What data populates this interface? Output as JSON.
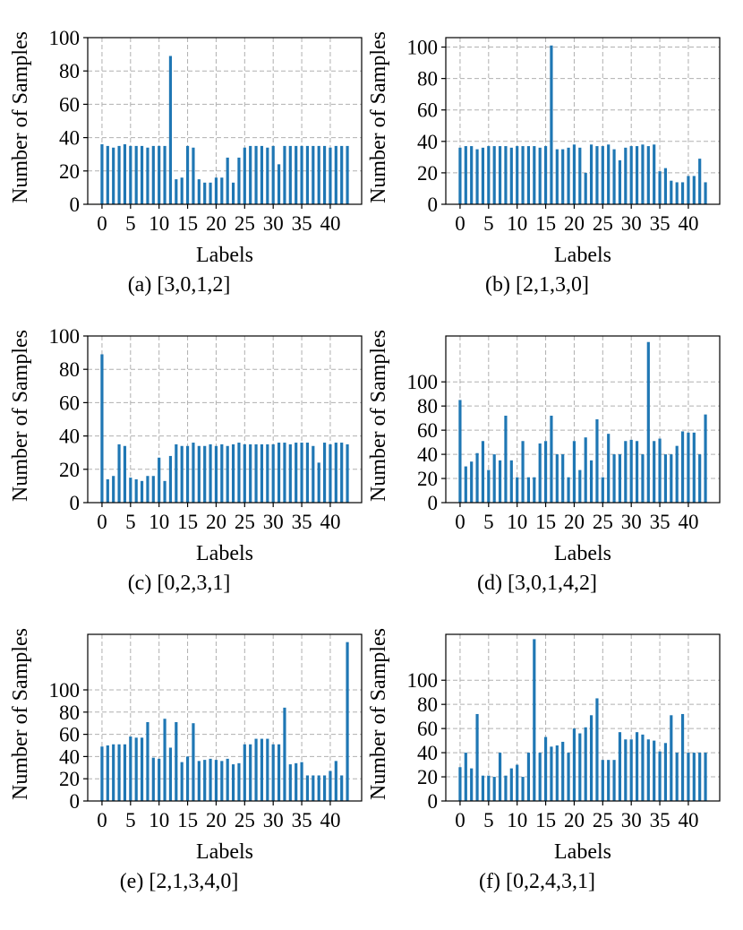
{
  "figure": {
    "bar_color": "#1f77b4",
    "grid_color": "#b0b0b0"
  },
  "chart_data": [
    {
      "type": "bar",
      "caption": "(a) [3,0,1,2]",
      "xlabel": "Labels",
      "ylabel": "Number of Samples",
      "xlim": [
        -2.5,
        45.5
      ],
      "ylim": [
        0,
        100
      ],
      "yticks": [
        0,
        20,
        40,
        60,
        80,
        100
      ],
      "xticks": [
        0,
        5,
        10,
        15,
        20,
        25,
        30,
        35,
        40
      ],
      "grid": true,
      "categories": [
        0,
        1,
        2,
        3,
        4,
        5,
        6,
        7,
        8,
        9,
        10,
        11,
        12,
        13,
        14,
        15,
        16,
        17,
        18,
        19,
        20,
        21,
        22,
        23,
        24,
        25,
        26,
        27,
        28,
        29,
        30,
        31,
        32,
        33,
        34,
        35,
        36,
        37,
        38,
        39,
        40,
        41,
        42,
        43
      ],
      "values": [
        36,
        35,
        34,
        35,
        36,
        35,
        35,
        35,
        34,
        35,
        35,
        35,
        89,
        15,
        16,
        35,
        34,
        15,
        13,
        13,
        16,
        16,
        28,
        13,
        28,
        34,
        35,
        35,
        35,
        34,
        35,
        24,
        35,
        35,
        35,
        35,
        35,
        35,
        35,
        35,
        34,
        35,
        35,
        35
      ]
    },
    {
      "type": "bar",
      "caption": "(b) [2,1,3,0]",
      "xlabel": "Labels",
      "ylabel": "Number of Samples",
      "xlim": [
        -2.5,
        45.5
      ],
      "ylim": [
        0,
        106
      ],
      "yticks": [
        0,
        20,
        40,
        60,
        80,
        100
      ],
      "xticks": [
        0,
        5,
        10,
        15,
        20,
        25,
        30,
        35,
        40
      ],
      "grid": true,
      "categories": [
        0,
        1,
        2,
        3,
        4,
        5,
        6,
        7,
        8,
        9,
        10,
        11,
        12,
        13,
        14,
        15,
        16,
        17,
        18,
        19,
        20,
        21,
        22,
        23,
        24,
        25,
        26,
        27,
        28,
        29,
        30,
        31,
        32,
        33,
        34,
        35,
        36,
        37,
        38,
        39,
        40,
        41,
        42,
        43
      ],
      "values": [
        36,
        37,
        37,
        35,
        36,
        37,
        37,
        37,
        37,
        36,
        37,
        37,
        37,
        37,
        36,
        37,
        101,
        35,
        35,
        36,
        38,
        36,
        20,
        38,
        37,
        37,
        38,
        35,
        28,
        36,
        37,
        37,
        38,
        37,
        38,
        21,
        23,
        15,
        14,
        14,
        18,
        18,
        29,
        14
      ]
    },
    {
      "type": "bar",
      "caption": "(c) [0,2,3,1]",
      "xlabel": "Labels",
      "ylabel": "Number of Samples",
      "xlim": [
        -2.5,
        45.5
      ],
      "ylim": [
        0,
        100
      ],
      "yticks": [
        0,
        20,
        40,
        60,
        80,
        100
      ],
      "xticks": [
        0,
        5,
        10,
        15,
        20,
        25,
        30,
        35,
        40
      ],
      "grid": true,
      "categories": [
        0,
        1,
        2,
        3,
        4,
        5,
        6,
        7,
        8,
        9,
        10,
        11,
        12,
        13,
        14,
        15,
        16,
        17,
        18,
        19,
        20,
        21,
        22,
        23,
        24,
        25,
        26,
        27,
        28,
        29,
        30,
        31,
        32,
        33,
        34,
        35,
        36,
        37,
        38,
        39,
        40,
        41,
        42,
        43
      ],
      "values": [
        89,
        14,
        16,
        35,
        34,
        15,
        14,
        13,
        16,
        16,
        27,
        13,
        28,
        35,
        34,
        34,
        36,
        34,
        34,
        35,
        34,
        35,
        34,
        35,
        36,
        35,
        35,
        35,
        35,
        35,
        35,
        36,
        36,
        35,
        36,
        36,
        36,
        34,
        24,
        36,
        35,
        36,
        36,
        35
      ]
    },
    {
      "type": "bar",
      "caption": "(d) [3,0,1,4,2]",
      "xlabel": "Labels",
      "ylabel": "Number of Samples",
      "xlim": [
        -2.5,
        45.5
      ],
      "ylim": [
        0,
        138
      ],
      "yticks": [
        0,
        20,
        40,
        60,
        80,
        100
      ],
      "xticks": [
        0,
        5,
        10,
        15,
        20,
        25,
        30,
        35,
        40
      ],
      "grid": true,
      "categories": [
        0,
        1,
        2,
        3,
        4,
        5,
        6,
        7,
        8,
        9,
        10,
        11,
        12,
        13,
        14,
        15,
        16,
        17,
        18,
        19,
        20,
        21,
        22,
        23,
        24,
        25,
        26,
        27,
        28,
        29,
        30,
        31,
        32,
        33,
        34,
        35,
        36,
        37,
        38,
        39,
        40,
        41,
        42,
        43
      ],
      "values": [
        85,
        30,
        34,
        41,
        51,
        27,
        40,
        35,
        72,
        35,
        21,
        51,
        21,
        21,
        49,
        51,
        72,
        40,
        40,
        21,
        51,
        27,
        54,
        35,
        69,
        21,
        57,
        40,
        40,
        51,
        52,
        51,
        40,
        133,
        51,
        53,
        40,
        40,
        47,
        59,
        58,
        58,
        40,
        73
      ]
    },
    {
      "type": "bar",
      "caption": "(e) [2,1,3,4,0]",
      "xlabel": "Labels",
      "ylabel": "Number of Samples",
      "xlim": [
        -2.5,
        45.5
      ],
      "ylim": [
        0,
        150
      ],
      "yticks": [
        0,
        20,
        40,
        60,
        80,
        100
      ],
      "xticks": [
        0,
        5,
        10,
        15,
        20,
        25,
        30,
        35,
        40
      ],
      "grid": true,
      "categories": [
        0,
        1,
        2,
        3,
        4,
        5,
        6,
        7,
        8,
        9,
        10,
        11,
        12,
        13,
        14,
        15,
        16,
        17,
        18,
        19,
        20,
        21,
        22,
        23,
        24,
        25,
        26,
        27,
        28,
        29,
        30,
        31,
        32,
        33,
        34,
        35,
        36,
        37,
        38,
        39,
        40,
        41,
        42,
        43
      ],
      "values": [
        49,
        50,
        51,
        51,
        51,
        58,
        57,
        57,
        71,
        39,
        38,
        74,
        48,
        71,
        35,
        40,
        70,
        36,
        37,
        38,
        37,
        36,
        38,
        33,
        34,
        51,
        51,
        56,
        56,
        56,
        51,
        51,
        84,
        33,
        34,
        35,
        23,
        23,
        23,
        23,
        27,
        36,
        23,
        143
      ]
    },
    {
      "type": "bar",
      "caption": "(f) [0,2,4,3,1]",
      "xlabel": "Labels",
      "ylabel": "Number of Samples",
      "xlim": [
        -2.5,
        45.5
      ],
      "ylim": [
        0,
        138
      ],
      "yticks": [
        0,
        20,
        40,
        60,
        80,
        100
      ],
      "xticks": [
        0,
        5,
        10,
        15,
        20,
        25,
        30,
        35,
        40
      ],
      "grid": true,
      "categories": [
        0,
        1,
        2,
        3,
        4,
        5,
        6,
        7,
        8,
        9,
        10,
        11,
        12,
        13,
        14,
        15,
        16,
        17,
        18,
        19,
        20,
        21,
        22,
        23,
        24,
        25,
        26,
        27,
        28,
        29,
        30,
        31,
        32,
        33,
        34,
        35,
        36,
        37,
        38,
        39,
        40,
        41,
        42,
        43
      ],
      "values": [
        28,
        40,
        27,
        72,
        21,
        21,
        20,
        40,
        21,
        27,
        30,
        20,
        40,
        134,
        40,
        53,
        45,
        46,
        49,
        40,
        60,
        56,
        61,
        71,
        85,
        34,
        34,
        34,
        57,
        51,
        51,
        57,
        55,
        51,
        50,
        41,
        48,
        71,
        40,
        72,
        40,
        40,
        40,
        40
      ]
    }
  ]
}
